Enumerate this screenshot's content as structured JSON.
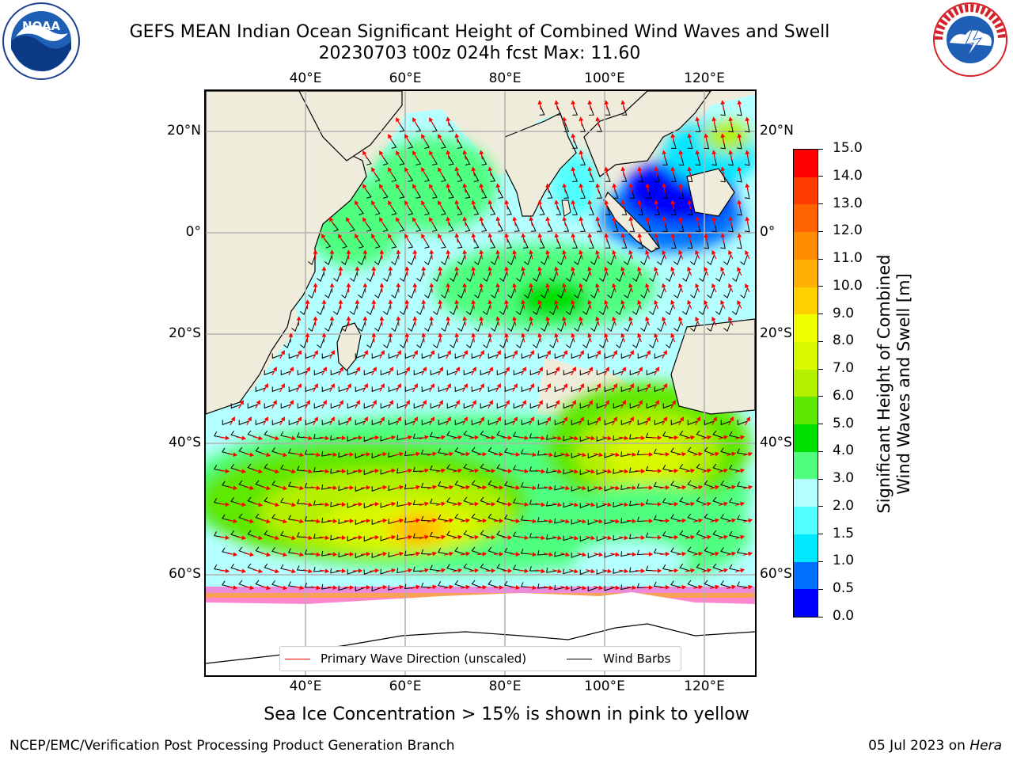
{
  "title": {
    "line1": "GEFS MEAN Indian Ocean Significant Height of Combined Wind Waves and Swell",
    "line2": "20230703 t00z 024h fcst   Max: 11.60"
  },
  "logos": {
    "left": "NOAA",
    "right": "NATIONAL WEATHER SERVICE"
  },
  "map": {
    "lon_ticks": [
      "40°E",
      "60°E",
      "80°E",
      "100°E",
      "120°E"
    ],
    "lat_ticks": [
      "20°N",
      "0°",
      "20°S",
      "40°S",
      "60°S"
    ],
    "lon_range": [
      20,
      130
    ],
    "lat_range": [
      -75,
      28
    ],
    "colors": {
      "land": "#efecdc",
      "ice_white": "#ffffff",
      "grid": "#b0b0b0",
      "wave_arrow": "#ff0000",
      "wind_barb": "#000000"
    }
  },
  "legend": {
    "wave_direction": "Primary Wave Direction (unscaled)",
    "wind_barbs": "Wind Barbs"
  },
  "colorbar": {
    "label_line1": "Significant Height of Combined",
    "label_line2": "Wind Waves and Swell [m]",
    "levels": [
      "0.0",
      "0.5",
      "1.0",
      "1.5",
      "2.0",
      "3.0",
      "4.0",
      "5.0",
      "6.0",
      "7.0",
      "8.0",
      "9.0",
      "10.0",
      "11.0",
      "12.0",
      "13.0",
      "14.0",
      "15.0"
    ],
    "colors": [
      "#0000ff",
      "#0072ff",
      "#00e8ff",
      "#50ffff",
      "#b4ffff",
      "#50ff80",
      "#00e000",
      "#5ee800",
      "#b4f000",
      "#d8f800",
      "#f0ff00",
      "#ffd000",
      "#ffb000",
      "#ff8c00",
      "#ff6400",
      "#ff3c00",
      "#ff0000"
    ]
  },
  "notes": {
    "ice": "Sea Ice Concentration > 15% is shown in pink to yellow"
  },
  "footer": {
    "left": "NCEP/EMC/Verification Post Processing Product Generation Branch",
    "date": "05 Jul 2023 on",
    "host": "Hera"
  }
}
